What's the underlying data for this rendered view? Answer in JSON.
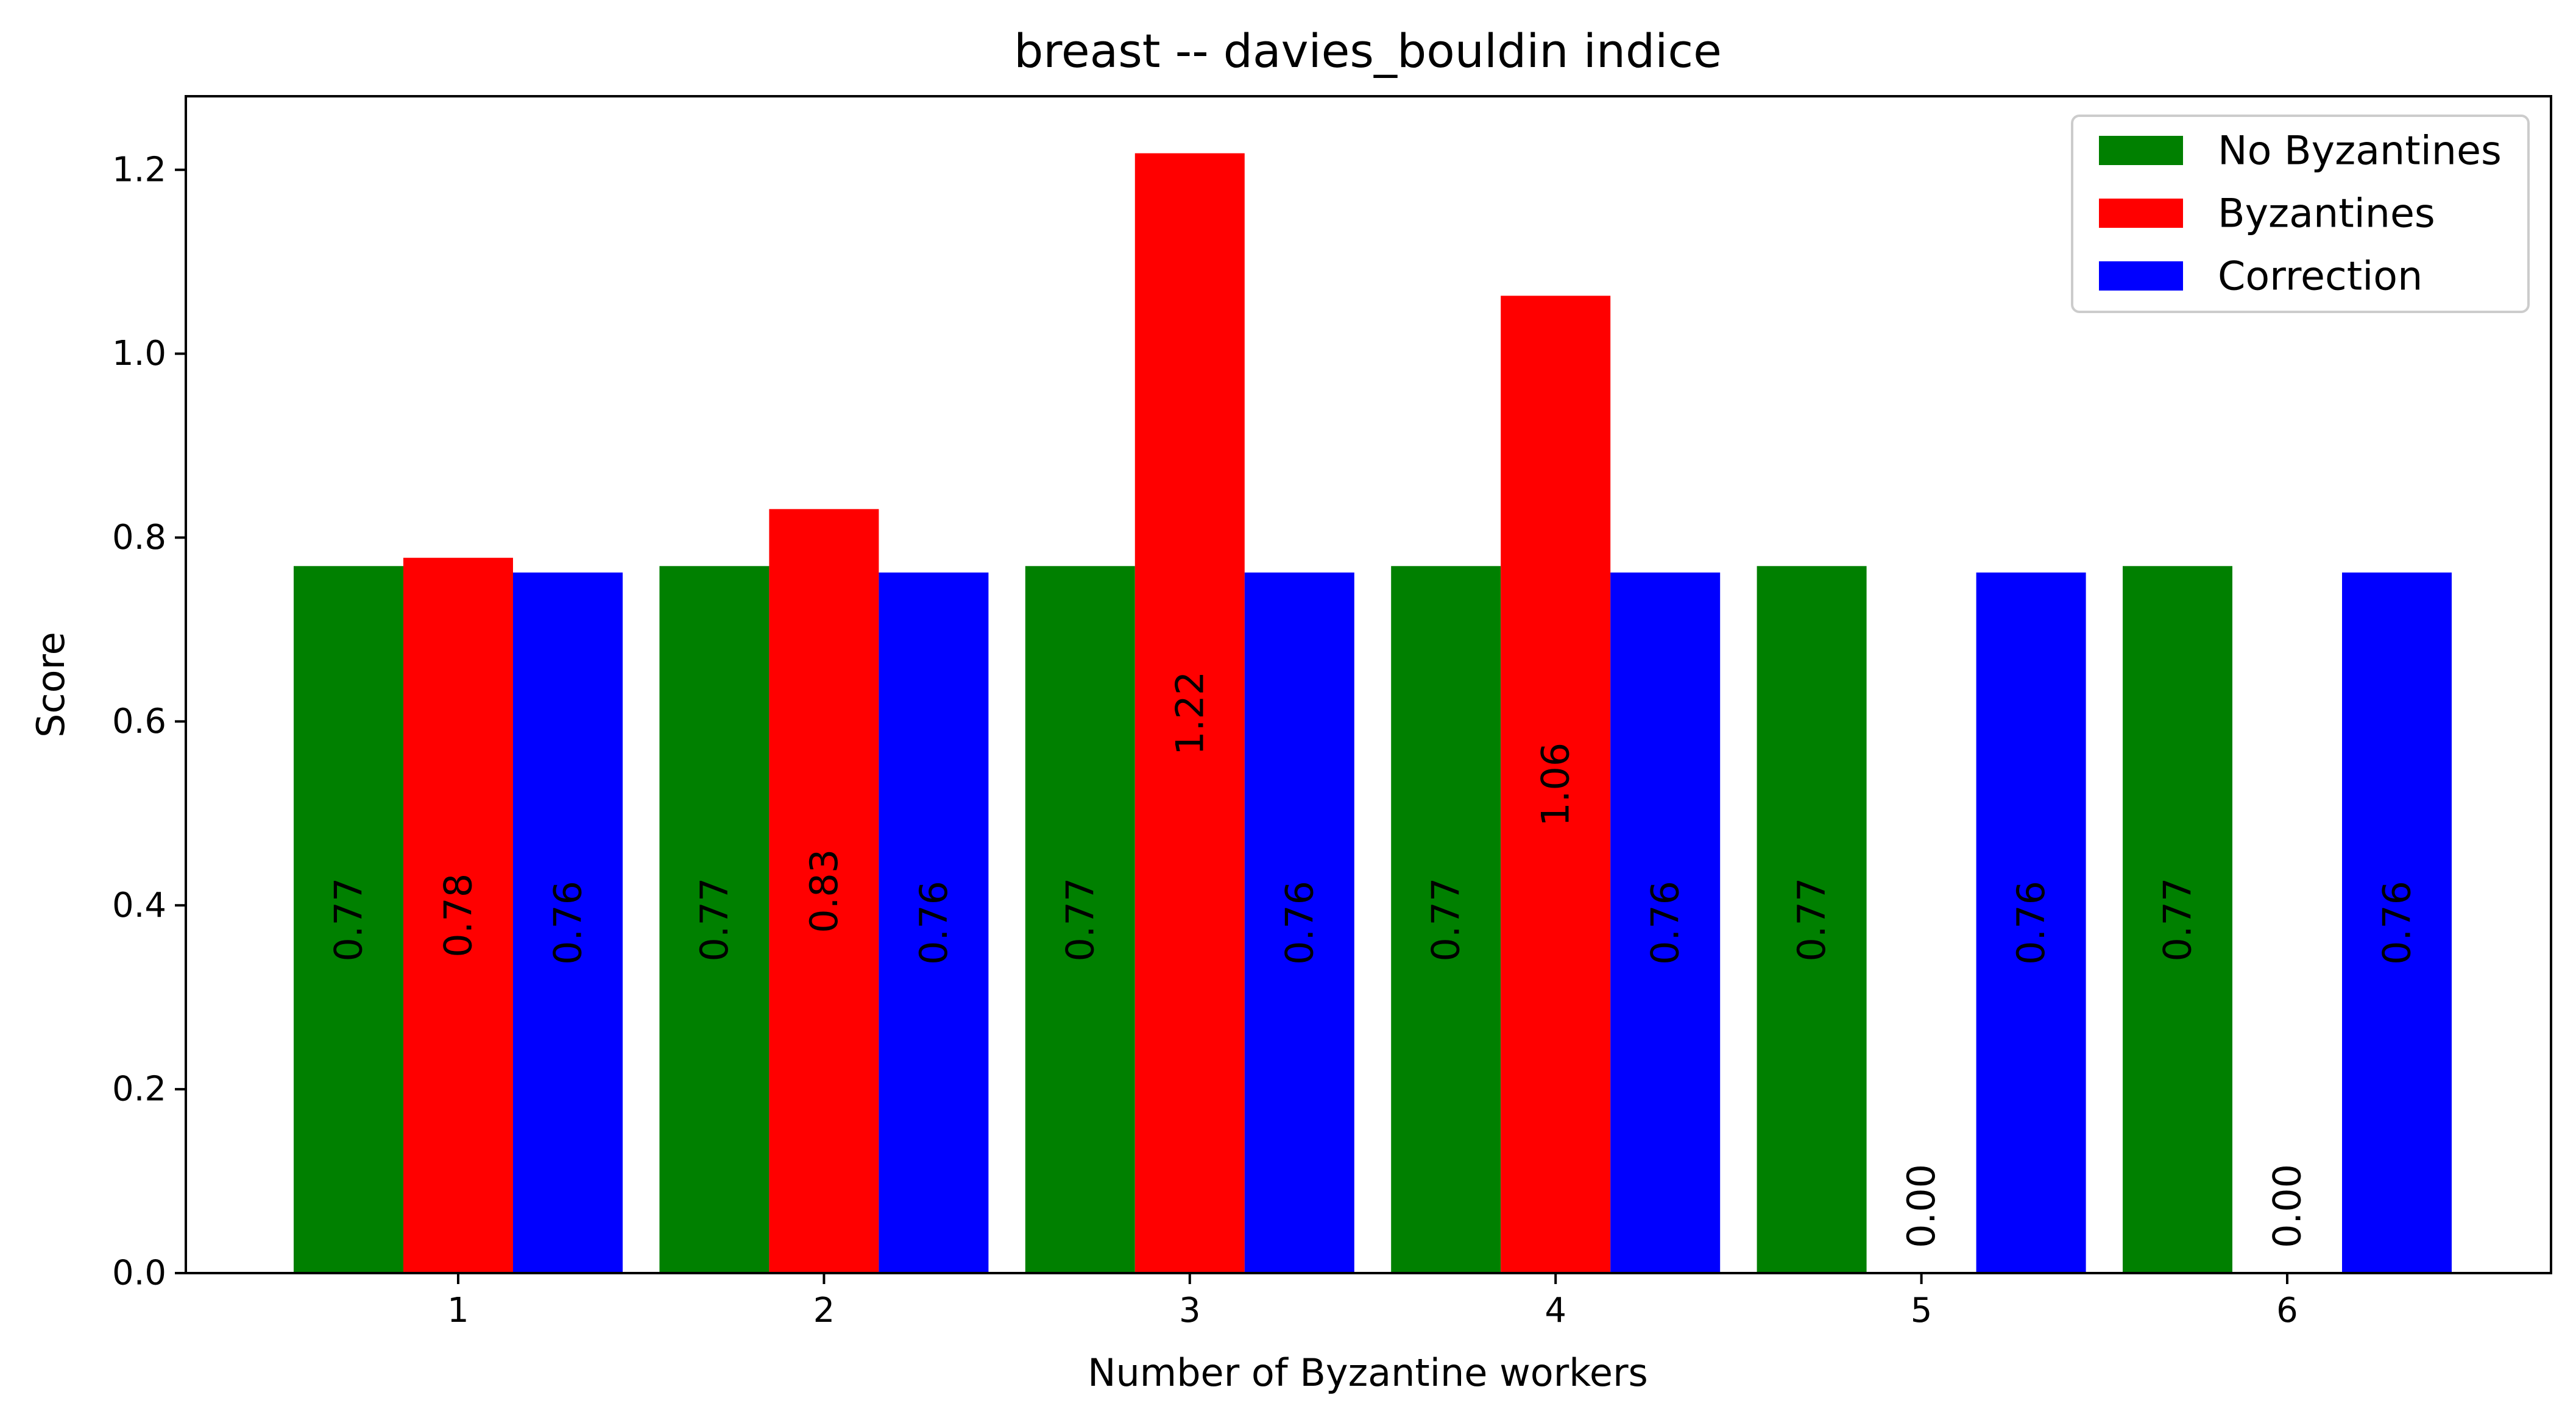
{
  "chart_data": {
    "type": "bar",
    "title": "breast -- davies_bouldin indice",
    "xlabel": "Number of Byzantine workers",
    "ylabel": "Score",
    "categories": [
      "1",
      "2",
      "3",
      "4",
      "5",
      "6"
    ],
    "series": [
      {
        "name": "No Byzantines",
        "color": "#008000",
        "values": [
          0.769,
          0.769,
          0.769,
          0.769,
          0.769,
          0.769
        ],
        "labels": [
          "0.77",
          "0.77",
          "0.77",
          "0.77",
          "0.77",
          "0.77"
        ]
      },
      {
        "name": "Byzantines",
        "color": "#ff0000",
        "values": [
          0.778,
          0.831,
          1.218,
          1.063,
          0.0,
          0.0
        ],
        "labels": [
          "0.78",
          "0.83",
          "1.22",
          "1.06",
          "0.00",
          "0.00"
        ]
      },
      {
        "name": "Correction",
        "color": "#0000ff",
        "values": [
          0.762,
          0.762,
          0.762,
          0.762,
          0.762,
          0.762
        ],
        "labels": [
          "0.76",
          "0.76",
          "0.76",
          "0.76",
          "0.76",
          "0.76"
        ]
      }
    ],
    "ylim": [
      0,
      1.28
    ],
    "yticks": [
      "0.0",
      "0.2",
      "0.4",
      "0.6",
      "0.8",
      "1.0",
      "1.2"
    ],
    "legend_position": "top-right",
    "grid": false
  }
}
